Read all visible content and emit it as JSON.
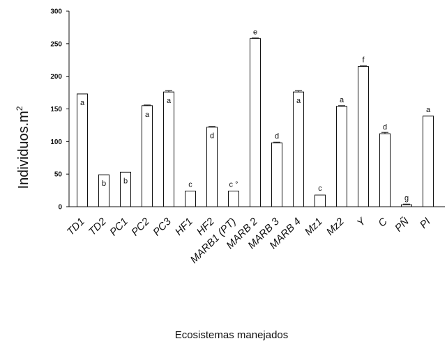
{
  "chart_data": {
    "type": "bar",
    "xlabel": "Ecosistemas manejados",
    "ylabel": "Individuos.m",
    "ylabel_sup": "2",
    "ylim": [
      0,
      300
    ],
    "yticks": [
      "0",
      "50",
      "100",
      "150",
      "200",
      "250",
      "300"
    ],
    "grid": false,
    "categories": [
      "TD1",
      "TD2",
      "PC1",
      "PC2",
      "PC3",
      "HF1",
      "HF2",
      "MARB1 (PT)",
      "MARB 2",
      "MARB 3",
      "MARB 4",
      "Mz1",
      "Mz2",
      "Y",
      "C",
      "PÑ",
      "PI"
    ],
    "values": [
      173,
      49,
      53,
      155,
      176,
      24,
      122,
      24,
      258,
      98,
      176,
      18,
      154,
      215,
      112,
      3,
      139
    ],
    "errors": [
      0,
      0,
      0,
      1,
      2,
      0,
      1,
      0,
      1,
      1,
      2,
      0,
      1,
      1,
      2,
      1,
      0
    ],
    "letters": [
      "a",
      "b",
      "b",
      "a",
      "a",
      "c",
      "d",
      "c °",
      "e",
      "d",
      "a",
      "c",
      "a",
      "f",
      "d",
      "g",
      "a"
    ],
    "letter_inside": [
      true,
      true,
      true,
      true,
      true,
      false,
      true,
      false,
      false,
      false,
      true,
      false,
      false,
      false,
      false,
      false,
      false
    ]
  }
}
